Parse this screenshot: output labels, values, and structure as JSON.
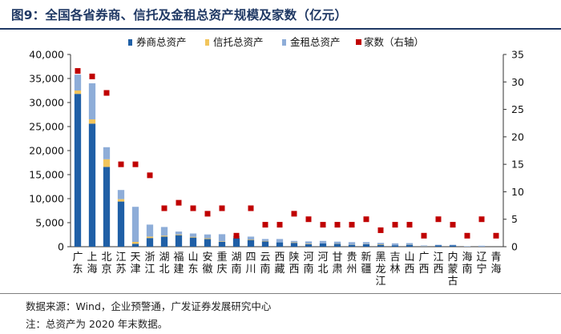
{
  "title": "图9：全国各省券商、信托及金租总资产规模及家数（亿元）",
  "chart_data": {
    "type": "bar",
    "stacked": true,
    "title": "图9：全国各省券商、信托及金租总资产规模及家数（亿元）",
    "categories": [
      "广东",
      "上海",
      "北京",
      "江苏",
      "天津",
      "浙江",
      "湖北",
      "福建",
      "山东",
      "安徽",
      "重庆",
      "湖南",
      "四川",
      "云南",
      "西藏",
      "陕西",
      "河南",
      "河北",
      "甘肃",
      "贵州",
      "新疆",
      "黑龙江",
      "吉林",
      "山西",
      "广西",
      "江西",
      "内蒙古",
      "海南",
      "辽宁",
      "青海"
    ],
    "series": [
      {
        "name": "券商总资产",
        "axis": "left",
        "color": "#1f5fa6",
        "values": [
          31800,
          25600,
          16600,
          9400,
          600,
          1800,
          2100,
          2400,
          1900,
          1600,
          1000,
          1800,
          1400,
          1100,
          900,
          800,
          500,
          700,
          600,
          400,
          500,
          400,
          300,
          400,
          0,
          300,
          300,
          0,
          0,
          0
        ]
      },
      {
        "name": "信托总资产",
        "axis": "left",
        "color": "#f2c55c",
        "values": [
          700,
          900,
          1600,
          500,
          400,
          300,
          200,
          150,
          150,
          150,
          100,
          150,
          100,
          100,
          0,
          100,
          100,
          0,
          50,
          50,
          50,
          100,
          0,
          50,
          50,
          0,
          0,
          0,
          0,
          0
        ]
      },
      {
        "name": "金租总资产",
        "axis": "left",
        "color": "#8eadd8",
        "values": [
          3300,
          7500,
          2500,
          1900,
          7300,
          2500,
          1800,
          600,
          700,
          800,
          1500,
          300,
          600,
          400,
          700,
          300,
          500,
          500,
          400,
          500,
          400,
          300,
          400,
          300,
          200,
          100,
          100,
          100,
          200,
          0
        ]
      },
      {
        "name": "家数（右轴）",
        "axis": "right",
        "type": "scatter",
        "color": "#c00000",
        "values": [
          32,
          31,
          28,
          15,
          15,
          13,
          7,
          8,
          7,
          6,
          7,
          2,
          7,
          4,
          4,
          6,
          5,
          4,
          4,
          4,
          5,
          3,
          4,
          4,
          2,
          5,
          4,
          2,
          5,
          2
        ]
      }
    ],
    "left_axis": {
      "ylim": [
        0,
        40000
      ],
      "step": 5000,
      "tick_labels": [
        "0",
        "5,000",
        "10,000",
        "15,000",
        "20,000",
        "25,000",
        "30,000",
        "35,000",
        "40,000"
      ]
    },
    "right_axis": {
      "ylim": [
        0,
        35
      ],
      "step": 5,
      "tick_labels": [
        "0",
        "5",
        "10",
        "15",
        "20",
        "25",
        "30",
        "35"
      ]
    },
    "legend_position": "top",
    "grid": false
  },
  "footer": {
    "source": "数据来源：Wind，企业预警通，广发证券发展研究中心",
    "note": "注：总资产为 2020 年末数据。"
  }
}
